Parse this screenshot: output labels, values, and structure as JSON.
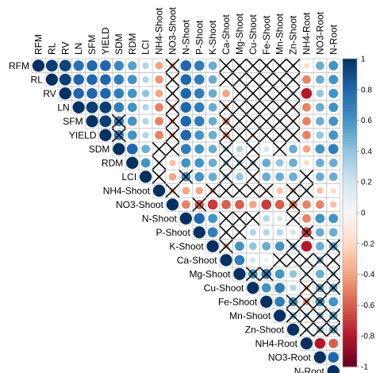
{
  "chart_data": {
    "type": "heatmap",
    "title": "",
    "variables": [
      "RFM",
      "RL",
      "RV",
      "LN",
      "SFM",
      "YIELD",
      "SDM",
      "RDM",
      "LCI",
      "NH4-Shoot",
      "NO3-Shoot",
      "N-Shoot",
      "P-Shoot",
      "K-Shoot",
      "Ca-Shoot",
      "Mg-Shoot",
      "Cu-Shoot",
      "Fe-Shoot",
      "Mn-Shoot",
      "Zn-Shoot",
      "NH4-Root",
      "NO3-Root",
      "N-Root"
    ],
    "colorbar": {
      "range": [
        -1,
        1
      ],
      "tick_labels": [
        "-1",
        "-0.8",
        "-0.6",
        "-0.4",
        "-0.2",
        "0",
        "0.2",
        "0.4",
        "0.6",
        "0.8",
        "1"
      ],
      "low_color": "#67001F",
      "mid_color": "#F7F7F7",
      "high_color": "#053061"
    },
    "grid": true,
    "crossed_out_means": "not significant",
    "rows": [
      [
        1,
        0.95,
        0.93,
        0.75,
        0.78,
        0.8,
        0.65,
        0.55,
        0.3,
        -0.4,
        -0.3,
        0.8,
        0.7,
        0.5,
        0.1,
        0.2,
        0.1,
        0.2,
        0.1,
        0.2,
        -0.2,
        0.5,
        0.6
      ],
      [
        0.95,
        1,
        0.95,
        0.8,
        0.8,
        0.8,
        0.7,
        0.6,
        0.3,
        -0.45,
        -0.2,
        0.8,
        0.7,
        0.5,
        0.1,
        0.1,
        0.1,
        0.1,
        0.1,
        0.2,
        -0.5,
        0.5,
        0.6
      ],
      [
        0.93,
        0.95,
        1,
        0.8,
        0.8,
        0.8,
        0.7,
        0.6,
        0.4,
        -0.4,
        -0.2,
        0.8,
        0.7,
        0.5,
        -0.4,
        0.1,
        0.1,
        0.1,
        0.1,
        0.2,
        -0.8,
        0.4,
        0.6
      ],
      [
        0.75,
        0.8,
        0.8,
        1,
        0.95,
        0.95,
        0.7,
        0.6,
        0.3,
        -0.5,
        -0.3,
        0.8,
        0.7,
        0.5,
        -0.3,
        0.1,
        0.2,
        0.1,
        0.2,
        -0.2,
        -0.5,
        0.5,
        0.6
      ],
      [
        0.78,
        0.8,
        0.8,
        0.95,
        1,
        0.95,
        0.7,
        0.6,
        0.3,
        -0.5,
        -0.3,
        0.8,
        0.7,
        0.5,
        -0.4,
        0.1,
        -0.2,
        0.1,
        0.2,
        -0.2,
        -0.5,
        0.5,
        0.6
      ],
      [
        0.8,
        0.8,
        0.8,
        0.95,
        0.95,
        1,
        0.7,
        0.6,
        0.3,
        -0.5,
        -0.3,
        0.8,
        0.6,
        0.5,
        -0.4,
        0.1,
        -0.2,
        0.1,
        0.2,
        -0.2,
        -0.5,
        0.4,
        0.6
      ],
      [
        0.65,
        0.7,
        0.7,
        0.7,
        0.7,
        0.7,
        1,
        0.8,
        0.5,
        0.1,
        -0.2,
        0.7,
        0.6,
        0.5,
        0.3,
        0.3,
        0.2,
        0.2,
        0.1,
        0.5,
        -0.4,
        0.6,
        0.7
      ],
      [
        0.55,
        0.6,
        0.6,
        0.6,
        0.6,
        0.6,
        0.8,
        1,
        0.6,
        0.1,
        -0.3,
        0.6,
        0.6,
        0.5,
        0.3,
        0.3,
        0.3,
        0.5,
        0.4,
        0.5,
        -0.2,
        0.5,
        0.5
      ],
      [
        0.3,
        0.3,
        0.4,
        0.3,
        0.3,
        0.3,
        0.5,
        0.6,
        1,
        -0.2,
        -0.4,
        0.6,
        0.6,
        0.5,
        0.3,
        0.4,
        0.1,
        0.5,
        0.5,
        0.5,
        0.2,
        0.5,
        0.5
      ],
      [
        -0.4,
        -0.45,
        -0.4,
        -0.5,
        -0.5,
        -0.5,
        0.1,
        0.1,
        -0.2,
        1,
        -0.3,
        -0.4,
        -0.4,
        -0.3,
        -0.1,
        0.1,
        0.1,
        -0.2,
        -0.3,
        -0.3,
        0.2,
        -0.3,
        -0.2
      ],
      [
        -0.3,
        -0.2,
        -0.2,
        -0.3,
        -0.3,
        -0.3,
        -0.2,
        -0.3,
        -0.4,
        -0.3,
        1,
        -0.5,
        -0.6,
        -0.7,
        -0.6,
        -0.6,
        -0.4,
        -0.7,
        -0.6,
        -0.5,
        -0.5,
        -0.5,
        -0.3
      ],
      [
        0.8,
        0.8,
        0.8,
        0.8,
        0.8,
        0.8,
        0.7,
        0.6,
        0.6,
        -0.4,
        -0.5,
        1,
        0.8,
        0.6,
        0.1,
        0.1,
        0.1,
        0.3,
        0.2,
        0.2,
        -0.5,
        0.6,
        0.6
      ],
      [
        0.7,
        0.7,
        0.7,
        0.7,
        0.7,
        0.6,
        0.6,
        0.6,
        0.6,
        -0.4,
        -0.6,
        0.8,
        1,
        0.7,
        0.2,
        0.1,
        0.3,
        0.3,
        0.3,
        0.2,
        -0.7,
        0.5,
        0.5
      ],
      [
        0.5,
        0.5,
        0.5,
        0.5,
        0.5,
        0.5,
        0.5,
        0.5,
        0.5,
        -0.3,
        -0.7,
        0.6,
        0.7,
        1,
        -0.3,
        0.6,
        0.4,
        0.5,
        0.6,
        0.4,
        -0.8,
        0.5,
        0.5
      ],
      [
        0.1,
        0.1,
        -0.4,
        -0.3,
        -0.4,
        -0.4,
        0.3,
        0.3,
        0.3,
        -0.1,
        -0.6,
        0.1,
        0.2,
        -0.3,
        1,
        0.7,
        0.2,
        0.1,
        0.1,
        0.1,
        0.2,
        0.4,
        0.2
      ],
      [
        0.2,
        0.1,
        0.1,
        0.1,
        0.1,
        0.1,
        0.3,
        0.3,
        0.4,
        0.1,
        -0.6,
        0.1,
        0.1,
        0.6,
        0.7,
        1,
        0.6,
        0.7,
        0.6,
        0.4,
        0.2,
        0.5,
        0.3
      ],
      [
        0.1,
        0.1,
        0.1,
        0.2,
        -0.2,
        -0.2,
        0.2,
        0.3,
        0.1,
        0.1,
        -0.4,
        0.1,
        0.3,
        0.4,
        0.2,
        0.6,
        1,
        0.6,
        0.7,
        0.3,
        -0.3,
        0.5,
        0.5
      ],
      [
        0.2,
        0.1,
        0.1,
        0.1,
        0.1,
        0.1,
        0.2,
        0.5,
        0.5,
        -0.2,
        -0.7,
        0.3,
        0.3,
        0.5,
        0.1,
        0.7,
        0.6,
        1,
        0.7,
        0.6,
        -0.4,
        0.6,
        0.6
      ],
      [
        0.1,
        0.1,
        0.1,
        0.2,
        0.2,
        0.2,
        0.1,
        0.4,
        0.5,
        -0.3,
        -0.6,
        0.2,
        0.3,
        0.6,
        0.1,
        0.6,
        0.7,
        0.7,
        1,
        0.4,
        0.3,
        0.4,
        0.5
      ],
      [
        0.2,
        0.2,
        0.2,
        -0.2,
        -0.2,
        -0.2,
        0.5,
        0.5,
        0.5,
        -0.3,
        -0.5,
        0.2,
        0.2,
        0.4,
        0.1,
        0.4,
        0.3,
        0.6,
        0.4,
        1,
        0.2,
        0.4,
        0.5
      ],
      [
        -0.2,
        -0.5,
        -0.8,
        -0.5,
        -0.5,
        -0.5,
        -0.4,
        -0.2,
        0.2,
        0.2,
        -0.5,
        -0.5,
        -0.7,
        -0.8,
        0.2,
        0.2,
        -0.3,
        -0.4,
        0.3,
        0.2,
        1,
        -0.8,
        -0.6
      ],
      [
        0.5,
        0.5,
        0.4,
        0.5,
        0.5,
        0.4,
        0.6,
        0.5,
        0.5,
        -0.3,
        -0.5,
        0.6,
        0.5,
        0.5,
        0.4,
        0.5,
        0.5,
        0.6,
        0.4,
        0.4,
        -0.8,
        1,
        0.8
      ],
      [
        0.6,
        0.6,
        0.6,
        0.6,
        0.6,
        0.6,
        0.7,
        0.5,
        0.5,
        -0.2,
        -0.3,
        0.6,
        0.5,
        0.5,
        0.2,
        0.3,
        0.5,
        0.6,
        0.5,
        0.5,
        -0.6,
        0.8,
        1
      ]
    ],
    "not_significant": [
      [
        0,
        10
      ],
      [
        0,
        14
      ],
      [
        0,
        15
      ],
      [
        0,
        16
      ],
      [
        0,
        17
      ],
      [
        0,
        18
      ],
      [
        0,
        19
      ],
      [
        1,
        10
      ],
      [
        1,
        14
      ],
      [
        1,
        15
      ],
      [
        1,
        16
      ],
      [
        1,
        17
      ],
      [
        1,
        18
      ],
      [
        1,
        19
      ],
      [
        2,
        10
      ],
      [
        2,
        15
      ],
      [
        2,
        16
      ],
      [
        2,
        17
      ],
      [
        2,
        18
      ],
      [
        2,
        19
      ],
      [
        3,
        10
      ],
      [
        3,
        14
      ],
      [
        3,
        15
      ],
      [
        3,
        16
      ],
      [
        3,
        17
      ],
      [
        3,
        18
      ],
      [
        3,
        19
      ],
      [
        4,
        6
      ],
      [
        4,
        10
      ],
      [
        4,
        14
      ],
      [
        4,
        15
      ],
      [
        4,
        16
      ],
      [
        4,
        17
      ],
      [
        4,
        18
      ],
      [
        4,
        19
      ],
      [
        5,
        6
      ],
      [
        5,
        10
      ],
      [
        5,
        14
      ],
      [
        5,
        15
      ],
      [
        5,
        16
      ],
      [
        5,
        17
      ],
      [
        5,
        18
      ],
      [
        5,
        19
      ],
      [
        6,
        9
      ],
      [
        6,
        10
      ],
      [
        6,
        14
      ],
      [
        6,
        16
      ],
      [
        6,
        18
      ],
      [
        7,
        9
      ],
      [
        7,
        14
      ],
      [
        7,
        15
      ],
      [
        7,
        16
      ],
      [
        8,
        9
      ],
      [
        8,
        11
      ],
      [
        8,
        14
      ],
      [
        8,
        16
      ],
      [
        8,
        20
      ],
      [
        9,
        10
      ],
      [
        9,
        13
      ],
      [
        9,
        14
      ],
      [
        9,
        15
      ],
      [
        9,
        16
      ],
      [
        9,
        17
      ],
      [
        9,
        19
      ],
      [
        9,
        20
      ],
      [
        10,
        12
      ],
      [
        10,
        19
      ],
      [
        11,
        14
      ],
      [
        11,
        15
      ],
      [
        11,
        16
      ],
      [
        11,
        19
      ],
      [
        12,
        14
      ],
      [
        12,
        15
      ],
      [
        12,
        20
      ],
      [
        13,
        14
      ],
      [
        13,
        19
      ],
      [
        13,
        22
      ],
      [
        14,
        18
      ],
      [
        14,
        19
      ],
      [
        14,
        20
      ],
      [
        14,
        21
      ],
      [
        14,
        22
      ],
      [
        15,
        16
      ],
      [
        15,
        17
      ],
      [
        15,
        20
      ],
      [
        15,
        22
      ],
      [
        16,
        20
      ],
      [
        16,
        21
      ],
      [
        16,
        22
      ],
      [
        17,
        19
      ],
      [
        17,
        20
      ],
      [
        17,
        21
      ],
      [
        18,
        19
      ],
      [
        18,
        20
      ],
      [
        18,
        21
      ],
      [
        18,
        22
      ],
      [
        19,
        20
      ],
      [
        19,
        21
      ],
      [
        19,
        22
      ]
    ]
  }
}
